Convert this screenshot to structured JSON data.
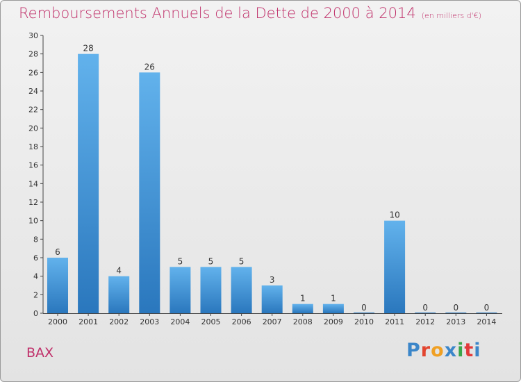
{
  "title": "Remboursements Annuels de la Dette de 2000 à 2014",
  "unit": "(en milliers d'€)",
  "commune": "BAX",
  "brand": "Proxiti",
  "brand_colors": [
    "#3b86c9",
    "#e2452f",
    "#f0a023",
    "#3b86c9",
    "#3aa64a",
    "#e23a3a",
    "#3b86c9"
  ],
  "colors": {
    "title": "#c0306a",
    "bar_top": "#62b2ec",
    "bar_bottom": "#2a77bd",
    "axis": "#444444"
  },
  "chart_data": {
    "type": "bar",
    "title": "Remboursements Annuels de la Dette de 2000 à 2014",
    "categories": [
      "2000",
      "2001",
      "2002",
      "2003",
      "2004",
      "2005",
      "2006",
      "2007",
      "2008",
      "2009",
      "2010",
      "2011",
      "2012",
      "2013",
      "2014"
    ],
    "values": [
      6,
      28,
      4,
      26,
      5,
      5,
      5,
      3,
      1,
      1,
      0,
      10,
      0,
      0,
      0
    ],
    "ylim": [
      0,
      30
    ],
    "yticks": [
      0,
      2,
      4,
      6,
      8,
      10,
      12,
      14,
      16,
      18,
      20,
      22,
      24,
      26,
      28,
      30
    ],
    "grid": false
  }
}
